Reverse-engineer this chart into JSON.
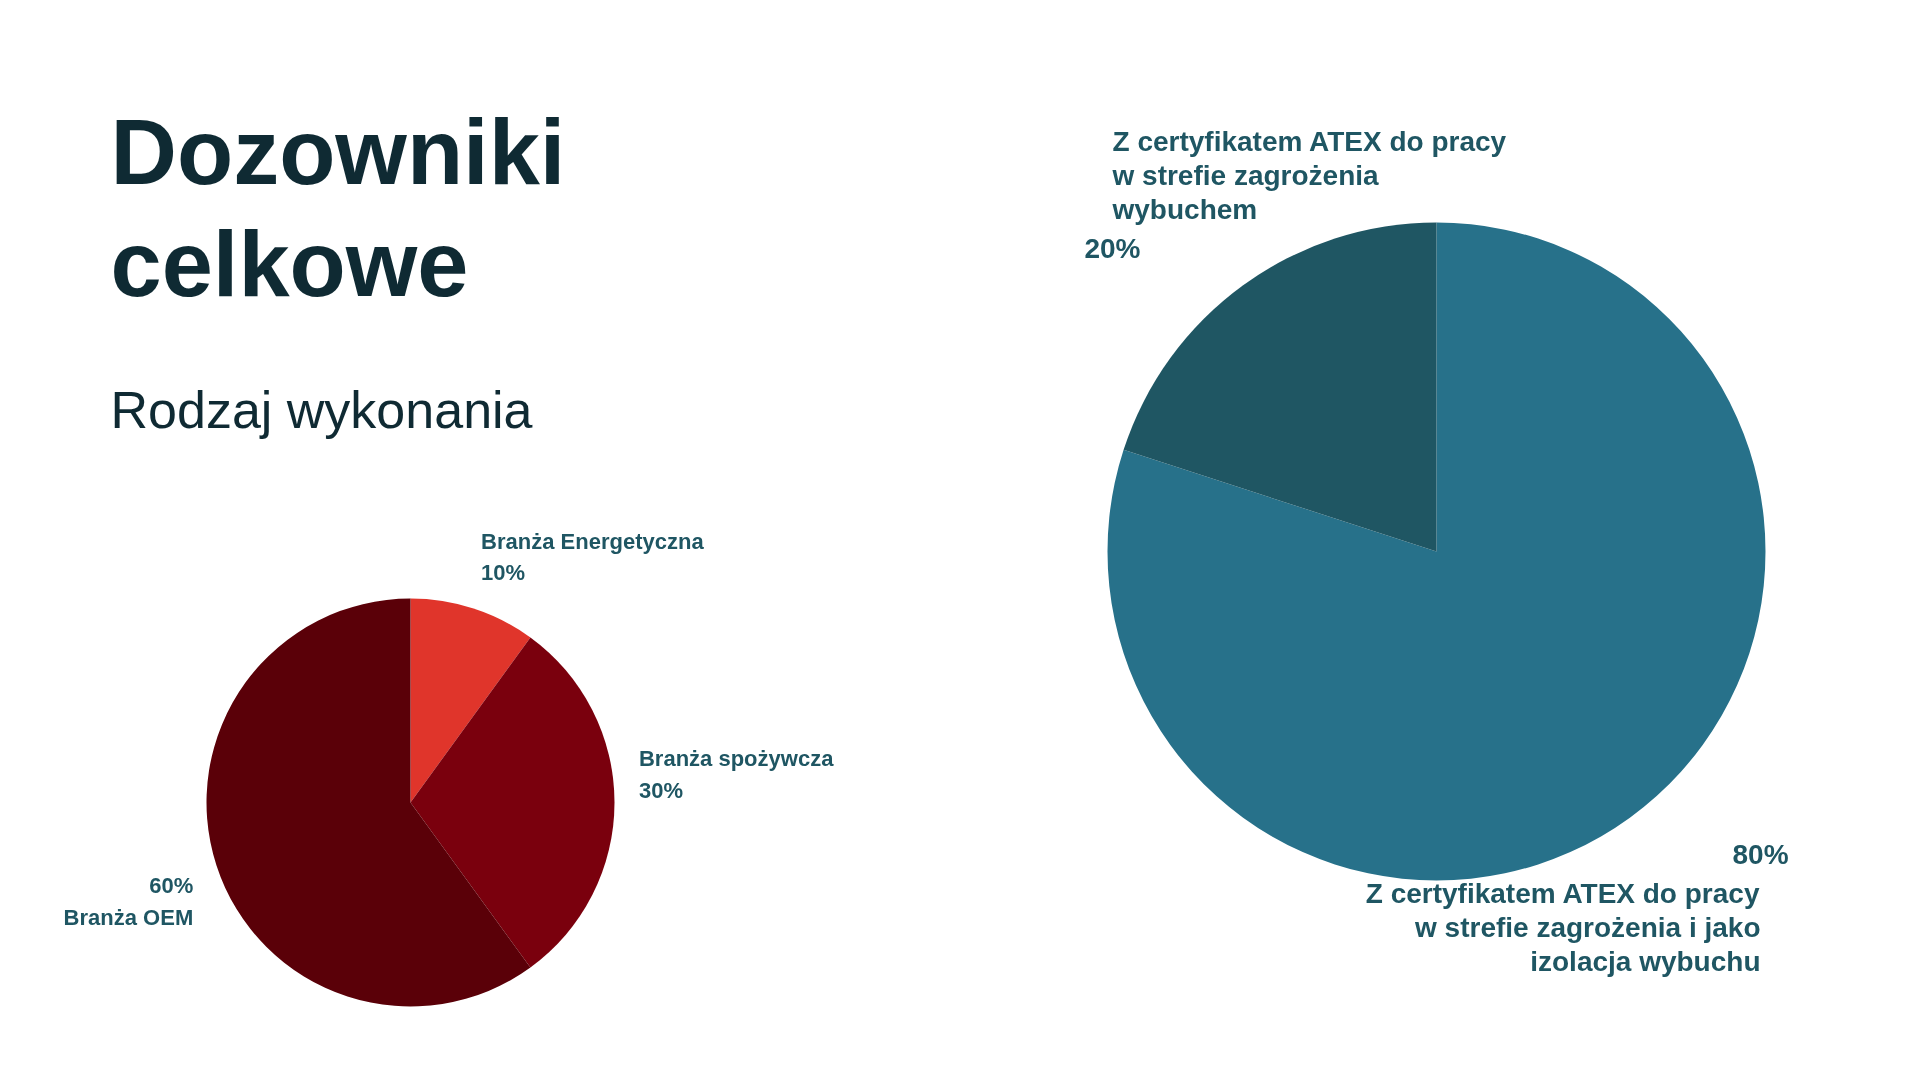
{
  "chart_data": [
    {
      "type": "pie",
      "title": "Dozowniki celkowe",
      "subtitle": "Rodzaj wykonania",
      "categories": [
        "Branża Energetyczna",
        "Branża spożywcza",
        "Branża OEM"
      ],
      "values": [
        10,
        30,
        60
      ],
      "colors": [
        "#e0352b",
        "#7a000d",
        "#5a0008"
      ],
      "value_labels": [
        "10%",
        "30%",
        "60%"
      ]
    },
    {
      "type": "pie",
      "categories": [
        "Z certyfikatem ATEX do pracy w strefie zagrożenia i jako izolacja wybuchu",
        "Z certyfikatem ATEX do pracy w strefie zagrożenia wybuchem"
      ],
      "values": [
        80,
        20
      ],
      "colors": [
        "#27718a",
        "#1f5663"
      ],
      "value_labels": [
        "80%",
        "20%"
      ]
    }
  ]
}
